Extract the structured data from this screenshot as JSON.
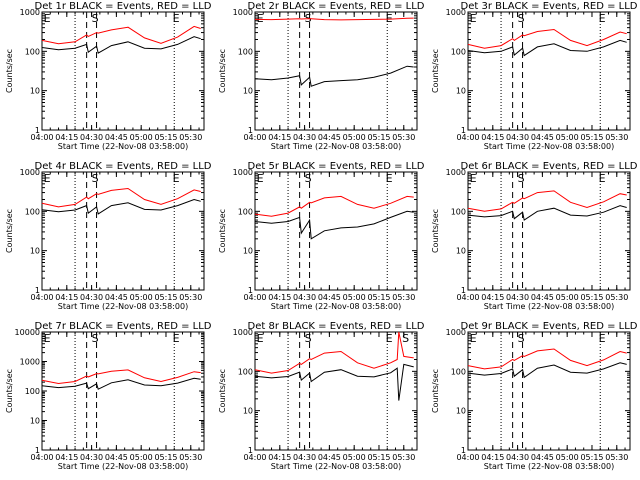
{
  "figure": {
    "xlabel": "Start Time (22-Nov-08 03:58:00)",
    "ylabel": "Counts/sec",
    "x_ticks": [
      "04:00",
      "04:15",
      "04:30",
      "04:45",
      "05:00",
      "05:15",
      "05:30"
    ],
    "event_markers": {
      "E": "E",
      "S": "S"
    },
    "colors": {
      "events": "#000000",
      "lld": "#ff0000"
    }
  },
  "chart_data": [
    {
      "type": "line",
      "title": "Det 1r BLACK = Events, RED = LLD",
      "yscale": "log",
      "ylim": [
        1,
        1000
      ],
      "xlim": [
        "04:00",
        "05:38"
      ],
      "y_ticks": [
        "1",
        "10",
        "100",
        "1000"
      ],
      "vlines_dotted": [
        "04:20",
        "05:20"
      ],
      "vlines_dashed": [
        "04:27",
        "04:33"
      ],
      "markers": [
        {
          "label": "E",
          "x": "04:01"
        },
        {
          "label": "S",
          "x": "04:30"
        },
        {
          "label": "E",
          "x": "05:19"
        }
      ],
      "series": [
        {
          "name": "Events",
          "x": [
            "04:00",
            "04:10",
            "04:20",
            "04:27",
            "04:28",
            "04:33",
            "04:34",
            "04:42",
            "04:52",
            "05:02",
            "05:12",
            "05:22",
            "05:32",
            "05:36"
          ],
          "values": [
            125,
            110,
            120,
            150,
            95,
            135,
            90,
            140,
            175,
            120,
            115,
            150,
            235,
            210
          ]
        },
        {
          "name": "LLD",
          "x": [
            "04:00",
            "04:10",
            "04:20",
            "04:27",
            "04:28",
            "04:33",
            "04:34",
            "04:42",
            "04:52",
            "05:02",
            "05:12",
            "05:22",
            "05:32",
            "05:36"
          ],
          "values": [
            190,
            155,
            175,
            260,
            240,
            300,
            290,
            350,
            410,
            220,
            160,
            230,
            430,
            380
          ]
        }
      ]
    },
    {
      "type": "line",
      "title": "Det 2r BLACK = Events, RED = LLD",
      "yscale": "log",
      "ylim": [
        1,
        1000
      ],
      "xlim": [
        "04:00",
        "05:38"
      ],
      "y_ticks": [
        "1",
        "10",
        "100",
        "1000"
      ],
      "vlines_dotted": [
        "04:20",
        "05:20"
      ],
      "vlines_dashed": [
        "04:27",
        "04:33"
      ],
      "markers": [
        {
          "label": "E",
          "x": "04:01"
        },
        {
          "label": "S",
          "x": "04:30"
        },
        {
          "label": "E",
          "x": "05:19"
        }
      ],
      "series": [
        {
          "name": "Events",
          "x": [
            "04:00",
            "04:10",
            "04:20",
            "04:27",
            "04:28",
            "04:33",
            "04:34",
            "04:42",
            "04:52",
            "05:02",
            "05:12",
            "05:22",
            "05:32",
            "05:36"
          ],
          "values": [
            20,
            19,
            21,
            24,
            14,
            22,
            13,
            17,
            18,
            19,
            22,
            28,
            42,
            40
          ]
        },
        {
          "name": "LLD",
          "x": [
            "04:00",
            "04:10",
            "04:20",
            "04:27",
            "04:28",
            "04:33",
            "04:34",
            "04:42",
            "04:52",
            "05:02",
            "05:12",
            "05:22",
            "05:32",
            "05:36"
          ],
          "values": [
            650,
            640,
            660,
            670,
            665,
            680,
            675,
            640,
            630,
            640,
            650,
            660,
            690,
            700
          ]
        }
      ]
    },
    {
      "type": "line",
      "title": "Det 3r BLACK = Events, RED = LLD",
      "yscale": "log",
      "ylim": [
        1,
        1000
      ],
      "xlim": [
        "04:00",
        "05:38"
      ],
      "y_ticks": [
        "1",
        "10",
        "100",
        "1000"
      ],
      "vlines_dotted": [
        "04:20",
        "05:20"
      ],
      "vlines_dashed": [
        "04:27",
        "04:33"
      ],
      "markers": [
        {
          "label": "E",
          "x": "04:01"
        },
        {
          "label": "S",
          "x": "04:30"
        },
        {
          "label": "E",
          "x": "05:19"
        }
      ],
      "series": [
        {
          "name": "Events",
          "x": [
            "04:00",
            "04:10",
            "04:20",
            "04:27",
            "04:28",
            "04:33",
            "04:34",
            "04:42",
            "04:52",
            "05:02",
            "05:12",
            "05:22",
            "05:32",
            "05:36"
          ],
          "values": [
            105,
            92,
            100,
            130,
            80,
            120,
            78,
            130,
            155,
            105,
            100,
            130,
            190,
            170
          ]
        },
        {
          "name": "LLD",
          "x": [
            "04:00",
            "04:10",
            "04:20",
            "04:27",
            "04:28",
            "04:33",
            "04:34",
            "04:42",
            "04:52",
            "05:02",
            "05:12",
            "05:22",
            "05:32",
            "05:36"
          ],
          "values": [
            150,
            120,
            140,
            210,
            190,
            260,
            250,
            320,
            360,
            190,
            140,
            200,
            310,
            280
          ]
        }
      ]
    },
    {
      "type": "line",
      "title": "Det 4r BLACK = Events, RED = LLD",
      "yscale": "log",
      "ylim": [
        1,
        1000
      ],
      "xlim": [
        "04:00",
        "05:38"
      ],
      "y_ticks": [
        "1",
        "10",
        "100",
        "1000"
      ],
      "vlines_dotted": [
        "04:20",
        "05:20"
      ],
      "vlines_dashed": [
        "04:27",
        "04:33"
      ],
      "markers": [
        {
          "label": "E",
          "x": "04:01"
        },
        {
          "label": "S",
          "x": "04:30"
        },
        {
          "label": "E",
          "x": "05:19"
        }
      ],
      "series": [
        {
          "name": "Events",
          "x": [
            "04:00",
            "04:10",
            "04:20",
            "04:27",
            "04:28",
            "04:33",
            "04:34",
            "04:42",
            "04:52",
            "05:02",
            "05:12",
            "05:22",
            "05:32",
            "05:36"
          ],
          "values": [
            110,
            98,
            108,
            140,
            90,
            130,
            86,
            140,
            165,
            112,
            108,
            140,
            200,
            180
          ]
        },
        {
          "name": "LLD",
          "x": [
            "04:00",
            "04:10",
            "04:20",
            "04:27",
            "04:28",
            "04:33",
            "04:34",
            "04:42",
            "04:52",
            "05:02",
            "05:12",
            "05:22",
            "05:32",
            "05:36"
          ],
          "values": [
            160,
            130,
            150,
            230,
            210,
            280,
            270,
            340,
            380,
            200,
            150,
            210,
            350,
            320
          ]
        }
      ]
    },
    {
      "type": "line",
      "title": "Det 5r BLACK = Events, RED = LLD",
      "yscale": "log",
      "ylim": [
        1,
        1000
      ],
      "xlim": [
        "04:00",
        "05:38"
      ],
      "y_ticks": [
        "1",
        "10",
        "100",
        "1000"
      ],
      "vlines_dotted": [
        "04:20",
        "05:20"
      ],
      "vlines_dashed": [
        "04:27",
        "04:33"
      ],
      "markers": [
        {
          "label": "E",
          "x": "04:01"
        },
        {
          "label": "S",
          "x": "04:30"
        },
        {
          "label": "E",
          "x": "05:19"
        }
      ],
      "series": [
        {
          "name": "Events",
          "x": [
            "04:00",
            "04:10",
            "04:20",
            "04:27",
            "04:28",
            "04:33",
            "04:34",
            "04:42",
            "04:52",
            "05:02",
            "05:12",
            "05:22",
            "05:32",
            "05:36"
          ],
          "values": [
            55,
            50,
            55,
            70,
            28,
            60,
            20,
            32,
            38,
            40,
            48,
            70,
            100,
            95
          ]
        },
        {
          "name": "LLD",
          "x": [
            "04:00",
            "04:10",
            "04:20",
            "04:27",
            "04:28",
            "04:33",
            "04:34",
            "04:42",
            "04:52",
            "05:02",
            "05:12",
            "05:22",
            "05:32",
            "05:36"
          ],
          "values": [
            85,
            75,
            90,
            130,
            120,
            170,
            165,
            220,
            240,
            150,
            120,
            160,
            240,
            230
          ]
        }
      ]
    },
    {
      "type": "line",
      "title": "Det 6r BLACK = Events, RED = LLD",
      "yscale": "log",
      "ylim": [
        1,
        1000
      ],
      "xlim": [
        "04:00",
        "05:38"
      ],
      "y_ticks": [
        "1",
        "10",
        "100",
        "1000"
      ],
      "vlines_dotted": [
        "04:20",
        "05:20"
      ],
      "vlines_dashed": [
        "04:27",
        "04:33"
      ],
      "markers": [
        {
          "label": "E",
          "x": "04:01"
        },
        {
          "label": "S",
          "x": "04:30"
        },
        {
          "label": "E",
          "x": "05:19"
        }
      ],
      "series": [
        {
          "name": "Events",
          "x": [
            "04:00",
            "04:10",
            "04:20",
            "04:27",
            "04:28",
            "04:33",
            "04:34",
            "04:42",
            "04:52",
            "05:02",
            "05:12",
            "05:22",
            "05:32",
            "05:36"
          ],
          "values": [
            80,
            72,
            78,
            100,
            65,
            95,
            60,
            100,
            120,
            80,
            76,
            95,
            140,
            125
          ]
        },
        {
          "name": "LLD",
          "x": [
            "04:00",
            "04:10",
            "04:20",
            "04:27",
            "04:28",
            "04:33",
            "04:34",
            "04:42",
            "04:52",
            "05:02",
            "05:12",
            "05:22",
            "05:32",
            "05:36"
          ],
          "values": [
            120,
            100,
            115,
            170,
            160,
            220,
            210,
            300,
            330,
            170,
            125,
            175,
            280,
            260
          ]
        }
      ]
    },
    {
      "type": "line",
      "title": "Det 7r BLACK = Events, RED = LLD",
      "yscale": "log",
      "ylim": [
        1,
        10000
      ],
      "xlim": [
        "04:00",
        "05:38"
      ],
      "y_ticks": [
        "1",
        "10",
        "100",
        "1000",
        "10000"
      ],
      "vlines_dotted": [
        "04:20",
        "05:20"
      ],
      "vlines_dashed": [
        "04:27",
        "04:33"
      ],
      "markers": [
        {
          "label": "E",
          "x": "04:01"
        },
        {
          "label": "S",
          "x": "04:30"
        },
        {
          "label": "E",
          "x": "05:19"
        }
      ],
      "series": [
        {
          "name": "Events",
          "x": [
            "04:00",
            "04:10",
            "04:20",
            "04:27",
            "04:28",
            "04:33",
            "04:34",
            "04:42",
            "04:52",
            "05:02",
            "05:12",
            "05:22",
            "05:32",
            "05:36"
          ],
          "values": [
            150,
            130,
            145,
            185,
            120,
            175,
            115,
            190,
            240,
            160,
            150,
            185,
            270,
            250
          ]
        },
        {
          "name": "LLD",
          "x": [
            "04:00",
            "04:10",
            "04:20",
            "04:27",
            "04:28",
            "04:33",
            "04:34",
            "04:42",
            "04:52",
            "05:02",
            "05:12",
            "05:22",
            "05:32",
            "05:36"
          ],
          "values": [
            230,
            180,
            210,
            320,
            300,
            390,
            380,
            470,
            520,
            280,
            210,
            290,
            450,
            420
          ]
        }
      ]
    },
    {
      "type": "line",
      "title": "Det 8r BLACK = Events, RED = LLD",
      "yscale": "log",
      "ylim": [
        1,
        1000
      ],
      "xlim": [
        "04:00",
        "05:38"
      ],
      "y_ticks": [
        "1",
        "10",
        "100",
        "1000"
      ],
      "vlines_dotted": [
        "04:20",
        "05:20"
      ],
      "vlines_dashed": [
        "04:27",
        "04:33"
      ],
      "markers": [
        {
          "label": "E",
          "x": "04:01"
        },
        {
          "label": "S",
          "x": "04:30"
        },
        {
          "label": "E",
          "x": "05:19"
        },
        {
          "label": "S",
          "x": "05:29"
        }
      ],
      "series": [
        {
          "name": "Events",
          "x": [
            "04:00",
            "04:10",
            "04:20",
            "04:27",
            "04:28",
            "04:33",
            "04:34",
            "04:42",
            "04:52",
            "05:02",
            "05:12",
            "05:22",
            "05:26",
            "05:27",
            "05:30",
            "05:36"
          ],
          "values": [
            75,
            68,
            74,
            95,
            60,
            90,
            55,
            95,
            110,
            75,
            72,
            92,
            120,
            18,
            150,
            130
          ]
        },
        {
          "name": "LLD",
          "x": [
            "04:00",
            "04:10",
            "04:20",
            "04:27",
            "04:28",
            "04:33",
            "04:34",
            "04:42",
            "04:52",
            "05:02",
            "05:12",
            "05:22",
            "05:26",
            "05:27",
            "05:30",
            "05:36"
          ],
          "values": [
            110,
            90,
            105,
            160,
            150,
            210,
            200,
            290,
            320,
            165,
            120,
            165,
            200,
            1000,
            240,
            220
          ]
        }
      ]
    },
    {
      "type": "line",
      "title": "Det 9r BLACK = Events, RED = LLD",
      "yscale": "log",
      "ylim": [
        1,
        1000
      ],
      "xlim": [
        "04:00",
        "05:38"
      ],
      "y_ticks": [
        "1",
        "10",
        "100",
        "1000"
      ],
      "vlines_dotted": [
        "04:20",
        "05:20"
      ],
      "vlines_dashed": [
        "04:27",
        "04:33"
      ],
      "markers": [
        {
          "label": "E",
          "x": "04:01"
        },
        {
          "label": "S",
          "x": "04:30"
        },
        {
          "label": "E",
          "x": "05:19"
        }
      ],
      "series": [
        {
          "name": "Events",
          "x": [
            "04:00",
            "04:10",
            "04:20",
            "04:27",
            "04:28",
            "04:33",
            "04:34",
            "04:42",
            "04:52",
            "05:02",
            "05:12",
            "05:22",
            "05:32",
            "05:36"
          ],
          "values": [
            90,
            80,
            88,
            115,
            75,
            110,
            70,
            120,
            145,
            95,
            90,
            115,
            165,
            150
          ]
        },
        {
          "name": "LLD",
          "x": [
            "04:00",
            "04:10",
            "04:20",
            "04:27",
            "04:28",
            "04:33",
            "04:34",
            "04:42",
            "04:52",
            "05:02",
            "05:12",
            "05:22",
            "05:32",
            "05:36"
          ],
          "values": [
            140,
            115,
            130,
            200,
            190,
            250,
            240,
            330,
            370,
            190,
            140,
            195,
            320,
            290
          ]
        }
      ]
    }
  ]
}
